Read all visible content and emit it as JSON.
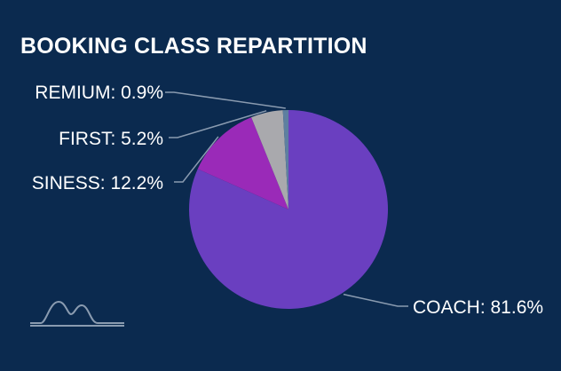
{
  "chart_data": {
    "type": "pie",
    "title": "BOOKING CLASS REPARTITION",
    "slices": [
      {
        "label": "COACH",
        "value": 81.6,
        "display": "COACH: 81.6%",
        "color": "#6a3fc0"
      },
      {
        "label": "BUSINESS",
        "value": 12.2,
        "display": "SINESS: 12.2%",
        "color": "#9a2ab8"
      },
      {
        "label": "FIRST",
        "value": 5.2,
        "display": "FIRST: 5.2%",
        "color": "#a9a9ad"
      },
      {
        "label": "PREMIUM",
        "value": 0.9,
        "display": "REMIUM: 0.9%",
        "color": "#5e7fa0"
      }
    ]
  },
  "colors": {
    "background": "#0b2a4f",
    "leader_line": "#8a9bb0",
    "logo": "#8a9bb0"
  },
  "icons": {
    "logo": "mountain-waves-logo"
  }
}
